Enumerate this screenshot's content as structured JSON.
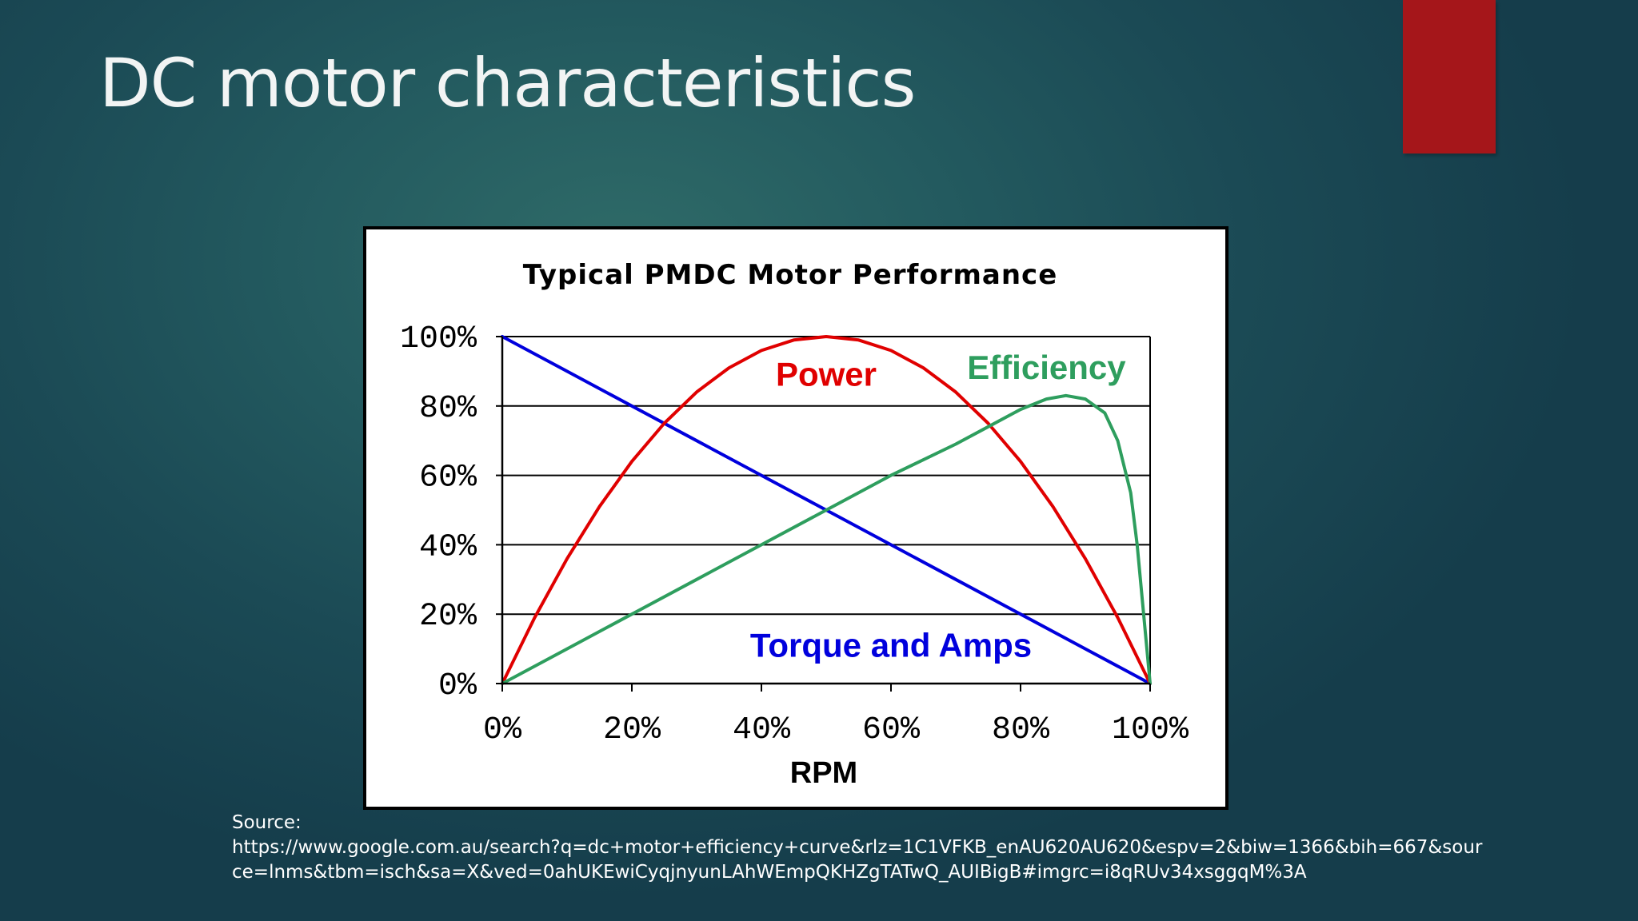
{
  "slide": {
    "title": "DC motor characteristics",
    "accent_color": "#a5161a"
  },
  "chart_data": {
    "type": "line",
    "title": "Typical PMDC Motor Performance",
    "xlabel": "RPM",
    "ylabel": "",
    "xlim": [
      0,
      100
    ],
    "ylim": [
      0,
      100
    ],
    "grid": "horizontal",
    "x_tick_labels": [
      "0%",
      "20%",
      "40%",
      "60%",
      "80%",
      "100%"
    ],
    "x_tick_values": [
      0,
      20,
      40,
      60,
      80,
      100
    ],
    "y_tick_labels": [
      "0%",
      "20%",
      "40%",
      "60%",
      "80%",
      "100%"
    ],
    "y_tick_values": [
      0,
      20,
      40,
      60,
      80,
      100
    ],
    "series": [
      {
        "name": "Torque and Amps",
        "color": "#0000dd",
        "x": [
          0,
          10,
          20,
          30,
          40,
          50,
          60,
          70,
          80,
          90,
          100
        ],
        "y": [
          100,
          90,
          80,
          70,
          60,
          50,
          40,
          30,
          20,
          10,
          0
        ]
      },
      {
        "name": "Power",
        "color": "#e00000",
        "x": [
          0,
          5,
          10,
          15,
          20,
          25,
          30,
          35,
          40,
          45,
          50,
          55,
          60,
          65,
          70,
          75,
          80,
          85,
          90,
          95,
          100
        ],
        "y": [
          0,
          19,
          36,
          51,
          64,
          75,
          84,
          91,
          96,
          99,
          100,
          99,
          96,
          91,
          84,
          75,
          64,
          51,
          36,
          19,
          0
        ]
      },
      {
        "name": "Efficiency",
        "color": "#2e9e5e",
        "x": [
          0,
          10,
          20,
          30,
          40,
          50,
          60,
          70,
          75,
          80,
          84,
          87,
          90,
          93,
          95,
          97,
          98,
          99,
          100
        ],
        "y": [
          0,
          10,
          20,
          30,
          40,
          50,
          60,
          69,
          74,
          79,
          82,
          83,
          82,
          78,
          70,
          55,
          40,
          20,
          0
        ]
      }
    ],
    "annotations": [
      {
        "text": "Power",
        "series": "Power",
        "x": 50,
        "y": 89
      },
      {
        "text": "Efficiency",
        "series": "Efficiency",
        "x": 84,
        "y": 91
      },
      {
        "text": "Torque and Amps",
        "series": "Torque and Amps",
        "x": 60,
        "y": 11
      }
    ]
  },
  "source": {
    "label": "Source:",
    "url_line_1": "https://www.google.com.au/search?q=dc+motor+efficiency+curve&rlz=1C1VFKB_enAU620AU620&espv=2&biw=1366&bih=667&sour",
    "url_line_2": "ce=lnms&tbm=isch&sa=X&ved=0ahUKEwiCyqjnyunLAhWEmpQKHZgTATwQ_AUIBigB#imgrc=i8qRUv34xsggqM%3A"
  }
}
